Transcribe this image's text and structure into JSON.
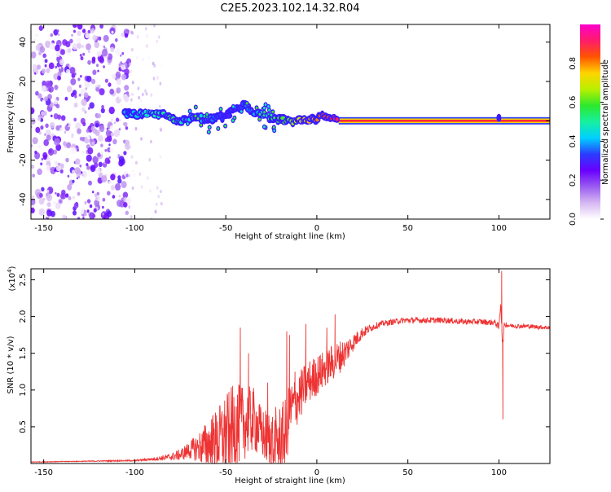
{
  "title": "C2E5.2023.102.14.32.R04",
  "chart_data": [
    {
      "type": "heatmap",
      "xlabel": "Height of straight line (km)",
      "ylabel": "Frequency (Hz)",
      "xlim": [
        -157,
        128
      ],
      "ylim": [
        -50,
        49
      ],
      "x_ticks": [
        -150,
        -100,
        -50,
        0,
        50,
        100
      ],
      "y_ticks": [
        -40,
        -20,
        0,
        20,
        40
      ],
      "colorbar": {
        "label": "Normalized spectral amplitude",
        "range": [
          0,
          1
        ],
        "ticks": [
          "0.0",
          "0.2",
          "0.4",
          "0.6",
          "0.8"
        ],
        "tick_values": [
          0,
          0.2,
          0.4,
          0.6,
          0.8
        ],
        "colors": [
          "#ffffff",
          "#d6b8f2",
          "#9a5cf0",
          "#6a00ff",
          "#2a3cff",
          "#00d0ff",
          "#16f0a0",
          "#2de82d",
          "#b8f000",
          "#ffd400",
          "#ff5500",
          "#ff1c6a",
          "#ff00cc"
        ]
      },
      "noise_region_x": [
        -157,
        -103
      ],
      "sparse_noise_x": [
        -103,
        -85
      ],
      "band": {
        "x": [
          -105,
          -95,
          -85,
          -80,
          -75,
          -70,
          -65,
          -60,
          -55,
          -50,
          -45,
          -40,
          -35,
          -30,
          -25,
          -20,
          -15,
          -10,
          -5,
          0,
          5,
          10,
          15,
          50,
          100,
          128
        ],
        "freq": [
          3.5,
          3.5,
          3.0,
          1.0,
          0.0,
          1.5,
          2.0,
          0.0,
          1.5,
          2.0,
          6.0,
          8.0,
          4.0,
          3.0,
          1.0,
          0.5,
          -0.5,
          0.0,
          0.0,
          1.5,
          2.5,
          1.0,
          0.0,
          0.0,
          0.0,
          0.0
        ],
        "amplitude": [
          0.4,
          0.45,
          0.5,
          0.55,
          0.5,
          0.45,
          0.45,
          0.4,
          0.35,
          0.3,
          0.3,
          0.35,
          0.4,
          0.45,
          0.55,
          0.6,
          0.6,
          0.7,
          0.75,
          0.8,
          0.85,
          0.9,
          0.95,
          0.95,
          0.95,
          0.95
        ]
      }
    },
    {
      "type": "line",
      "xlabel": "Height of straight line (km)",
      "ylabel": "SNR (10 * v/v)",
      "y_multiplier": "(x10",
      "y_multiplier_exp": "4",
      "y_multiplier_close": ")",
      "xlim": [
        -157,
        128
      ],
      "ylim": [
        0,
        2.65
      ],
      "x_ticks": [
        -150,
        -100,
        -50,
        0,
        50,
        100
      ],
      "y_ticks": [
        "0.5",
        "1.0",
        "1.5",
        "2.0",
        "2.5"
      ],
      "y_tick_values": [
        0.5,
        1.0,
        1.5,
        2.0,
        2.5
      ],
      "series": [
        {
          "color": "#ee3333",
          "x": [
            -157,
            -130,
            -100,
            -90,
            -80,
            -75,
            -70,
            -65,
            -60,
            -55,
            -50,
            -45,
            -40,
            -35,
            -30,
            -25,
            -20,
            -17,
            -15,
            -10,
            -5,
            0,
            5,
            10,
            15,
            20,
            25,
            30,
            35,
            40,
            45,
            50,
            60,
            70,
            80,
            90,
            95,
            98,
            100,
            101,
            102,
            103,
            105,
            110,
            115,
            120,
            128
          ],
          "y": [
            0.02,
            0.03,
            0.04,
            0.06,
            0.09,
            0.12,
            0.18,
            0.22,
            0.25,
            0.3,
            0.4,
            0.5,
            0.55,
            0.6,
            0.4,
            0.3,
            0.3,
            0.4,
            0.7,
            0.9,
            1.1,
            1.2,
            1.3,
            1.4,
            1.5,
            1.65,
            1.78,
            1.85,
            1.9,
            1.92,
            1.94,
            1.95,
            1.95,
            1.95,
            1.93,
            1.93,
            1.92,
            1.92,
            1.85,
            2.2,
            1.6,
            1.9,
            1.88,
            1.87,
            1.87,
            1.86,
            1.85
          ],
          "noise_amplitude": [
            0.005,
            0.005,
            0.01,
            0.02,
            0.05,
            0.08,
            0.12,
            0.2,
            0.35,
            0.45,
            0.55,
            0.6,
            0.5,
            0.45,
            0.35,
            0.45,
            0.5,
            0.5,
            0.4,
            0.35,
            0.3,
            0.28,
            0.25,
            0.25,
            0.2,
            0.12,
            0.08,
            0.05,
            0.04,
            0.04,
            0.04,
            0.04,
            0.04,
            0.04,
            0.04,
            0.04,
            0.04,
            0.04,
            0.05,
            0.05,
            0.05,
            0.04,
            0.03,
            0.03,
            0.03,
            0.03,
            0.03
          ],
          "spikes": [
            {
              "x": -42,
              "y": 1.85
            },
            {
              "x": -37.5,
              "y": 1.5
            },
            {
              "x": -27,
              "y": 1.1
            },
            {
              "x": -16.5,
              "y": 1.8
            },
            {
              "x": -15,
              "y": 1.75
            },
            {
              "x": -12,
              "y": 1.25
            },
            {
              "x": -6,
              "y": 1.9
            },
            {
              "x": 5.5,
              "y": 1.85
            },
            {
              "x": 10,
              "y": 2.03
            },
            {
              "x": 101.5,
              "y": 2.62
            },
            {
              "x": 102.2,
              "y": 0.6
            }
          ]
        }
      ]
    }
  ]
}
